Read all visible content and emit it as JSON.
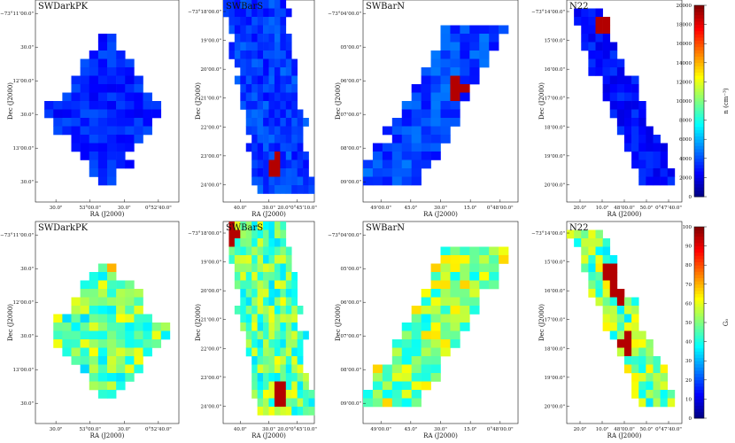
{
  "chart_data": {
    "type": "heatmap",
    "title": "",
    "rows": [
      {
        "quantity": "density",
        "colorbar": {
          "label": "n (cm⁻³)",
          "range": [
            0,
            20000
          ],
          "ticks": [
            "0",
            "2000",
            "4000",
            "6000",
            "8000",
            "10000",
            "12000",
            "14000",
            "16000",
            "18000",
            "20000"
          ]
        },
        "panels": [
          {
            "title": "SWDarkPK",
            "xlabel": "RA (J2000)",
            "ylabel": "Dec (J2000)",
            "xticks": [
              "30.0\"",
              "53°00.0\"",
              "30.0\"",
              "0°52’40.0\""
            ],
            "yticks": [
              "−73°11’00.0\"",
              "30.0\"",
              "12’00.0\"",
              "30.0\"",
              "13’00.0\"",
              "30.0\""
            ],
            "shape": "diamond",
            "base": 3200,
            "hot": []
          },
          {
            "title": "SWBarS",
            "xlabel": "RA (J2000)",
            "ylabel": "Dec (J2000)",
            "xticks": [
              "40.0\"",
              "30.0\"",
              "20.0\"0°45’10.0\""
            ],
            "yticks": [
              "−73°18’00.0\"",
              "19’00.0\"",
              "20’00.0\"",
              "21’00.0\"",
              "22’00.0\"",
              "23’00.0\"",
              "24’00.0\""
            ],
            "shape": "vstrip",
            "base": 3600,
            "hot": [
              [
                0.82,
                0.58,
                19000
              ]
            ]
          },
          {
            "title": "SWBarN",
            "xlabel": "RA (J2000)",
            "ylabel": "Dec (J2000)",
            "xticks": [
              "49’00.0\"",
              "45.0\"",
              "30.0\"",
              "15.0\"",
              "0°48’00.0\""
            ],
            "yticks": [
              "−73°04’00.0\"",
              "05’00.0\"",
              "06’00.0\"",
              "07’00.0\"",
              "08’00.0\"",
              "09’00.0\""
            ],
            "shape": "diag",
            "base": 3800,
            "hot": [
              [
                0.42,
                0.6,
                19000
              ]
            ]
          },
          {
            "title": "N22",
            "xlabel": "RA (J2000)",
            "ylabel": "Dec (J2000)",
            "xticks": [
              "20.0\"",
              "10.0\"",
              "48’00.0\"",
              "50.0\"",
              "0°47’40.0\""
            ],
            "yticks": [
              "−73°14’00.0\"",
              "15’00.0\"",
              "16’00.0\"",
              "17’00.0\"",
              "18’00.0\"",
              "19’00.0\"",
              "20’00.0\""
            ],
            "shape": "n22",
            "base": 2800,
            "hot": [
              [
                0.12,
                0.3,
                19000
              ]
            ]
          }
        ]
      },
      {
        "quantity": "G0",
        "colorbar": {
          "label": "G₀",
          "range": [
            0,
            100
          ],
          "ticks": [
            "0",
            "10",
            "20",
            "30",
            "40",
            "50",
            "60",
            "70",
            "80",
            "90",
            "100"
          ]
        },
        "panels": [
          {
            "title": "SWDarkPK",
            "xlabel": "RA (J2000)",
            "ylabel": "Dec (J2000)",
            "xticks": [
              "30.0\"",
              "53°00.0\"",
              "30.0\"",
              "0°52’40.0\""
            ],
            "yticks": [
              "−73°11’00.0\"",
              "30.0\"",
              "12’00.0\"",
              "30.0\"",
              "13’00.0\"",
              "30.0\""
            ],
            "shape": "diamond",
            "base": 48,
            "hot": [
              [
                0.2,
                0.55,
                70
              ]
            ]
          },
          {
            "title": "SWBarS",
            "xlabel": "RA (J2000)",
            "ylabel": "Dec (J2000)",
            "xticks": [
              "40.0\"",
              "30.0\"",
              "20.0\"0°45’10.0\""
            ],
            "yticks": [
              "−73°18’00.0\"",
              "19’00.0\"",
              "20’00.0\"",
              "21’00.0\"",
              "22’00.0\"",
              "23’00.0\"",
              "24’00.0\""
            ],
            "shape": "vstrip",
            "base": 48,
            "hot": [
              [
                0.85,
                0.62,
                95
              ],
              [
                0.08,
                0.1,
                95
              ]
            ]
          },
          {
            "title": "SWBarN",
            "xlabel": "RA (J2000)",
            "ylabel": "Dec (J2000)",
            "xticks": [
              "49’00.0\"",
              "45.0\"",
              "30.0\"",
              "15.0\"",
              "0°48’00.0\""
            ],
            "yticks": [
              "−73°04’00.0\"",
              "05’00.0\"",
              "06’00.0\"",
              "07’00.0\"",
              "08’00.0\"",
              "09’00.0\""
            ],
            "shape": "diag",
            "base": 52,
            "hot": []
          },
          {
            "title": "N22",
            "xlabel": "RA (J2000)",
            "ylabel": "Dec (J2000)",
            "xticks": [
              "20.0\"",
              "10.0\"",
              "48’00.0\"",
              "50.0\"",
              "0°47’40.0\""
            ],
            "yticks": [
              "−73°14’00.0\"",
              "15’00.0\"",
              "16’00.0\"",
              "17’00.0\"",
              "18’00.0\"",
              "19’00.0\"",
              "20’00.0\""
            ],
            "shape": "n22",
            "base": 50,
            "hot": [
              [
                0.25,
                0.4,
                95
              ],
              [
                0.35,
                0.45,
                95
              ],
              [
                0.6,
                0.52,
                95
              ],
              [
                0.75,
                0.38,
                95
              ]
            ]
          }
        ]
      }
    ]
  }
}
